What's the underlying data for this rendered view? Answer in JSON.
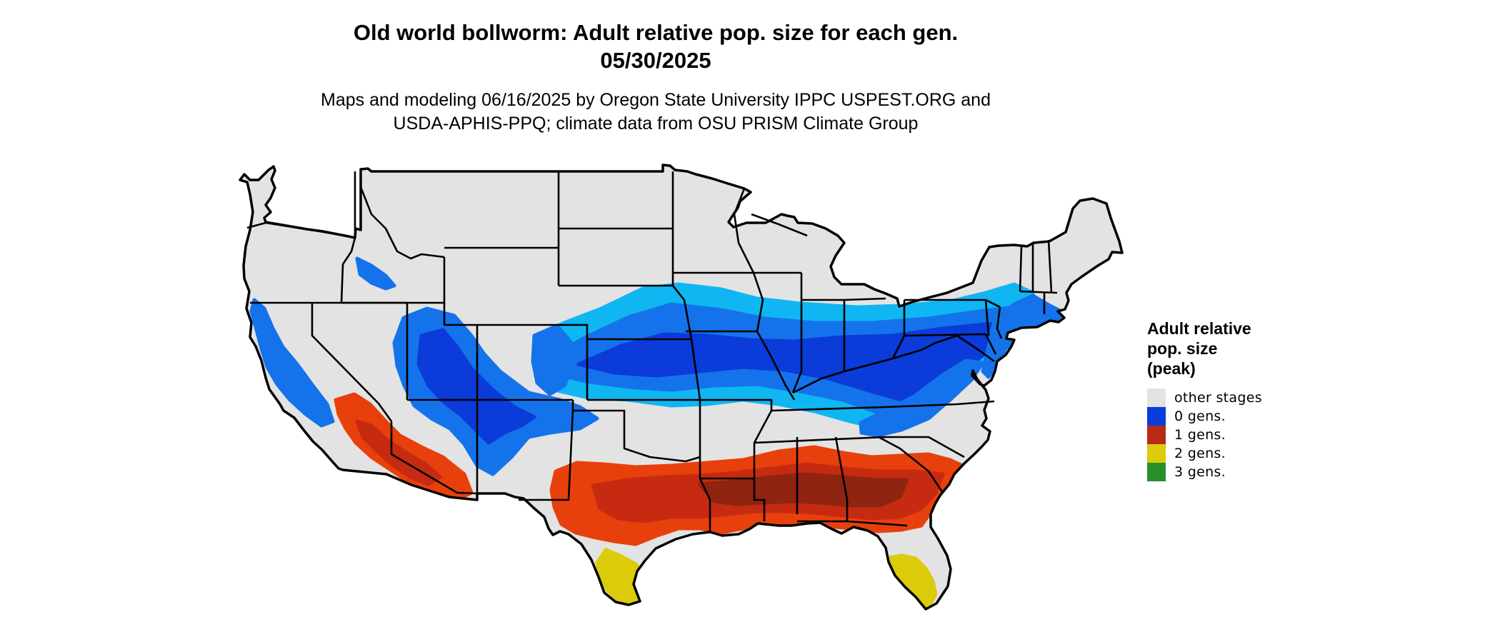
{
  "title": {
    "line1": "Old world bollworm: Adult relative pop. size for each gen.",
    "line2": "05/30/2025"
  },
  "subtitle": {
    "line1": "Maps and modeling 06/16/2025 by Oregon State University IPPC USPEST.ORG and",
    "line2": "USDA-APHIS-PPQ; climate data from OSU PRISM Climate Group"
  },
  "legend": {
    "title_lines": [
      "Adult relative",
      "pop. size",
      "(peak)"
    ],
    "items": [
      {
        "label": "other stages",
        "color": "#e3e3e3"
      },
      {
        "label": "0 gens.",
        "color": "#0b3bd8"
      },
      {
        "label": "1 gens.",
        "color": "#b82a14"
      },
      {
        "label": "2 gens.",
        "color": "#dccb0a"
      },
      {
        "label": "3 gens.",
        "color": "#27902b"
      }
    ]
  },
  "map_colors": {
    "land": "#e3e3e3",
    "border": "#000000",
    "gen0_dark": "#0b3bd8",
    "gen0_mid": "#1473ea",
    "gen0_light": "#10b6f2",
    "gen1_dark": "#8f2410",
    "gen1_mid": "#c62b12",
    "gen1_light": "#e8400c",
    "gen2": "#dccb0a",
    "gen3": "#27902b"
  }
}
